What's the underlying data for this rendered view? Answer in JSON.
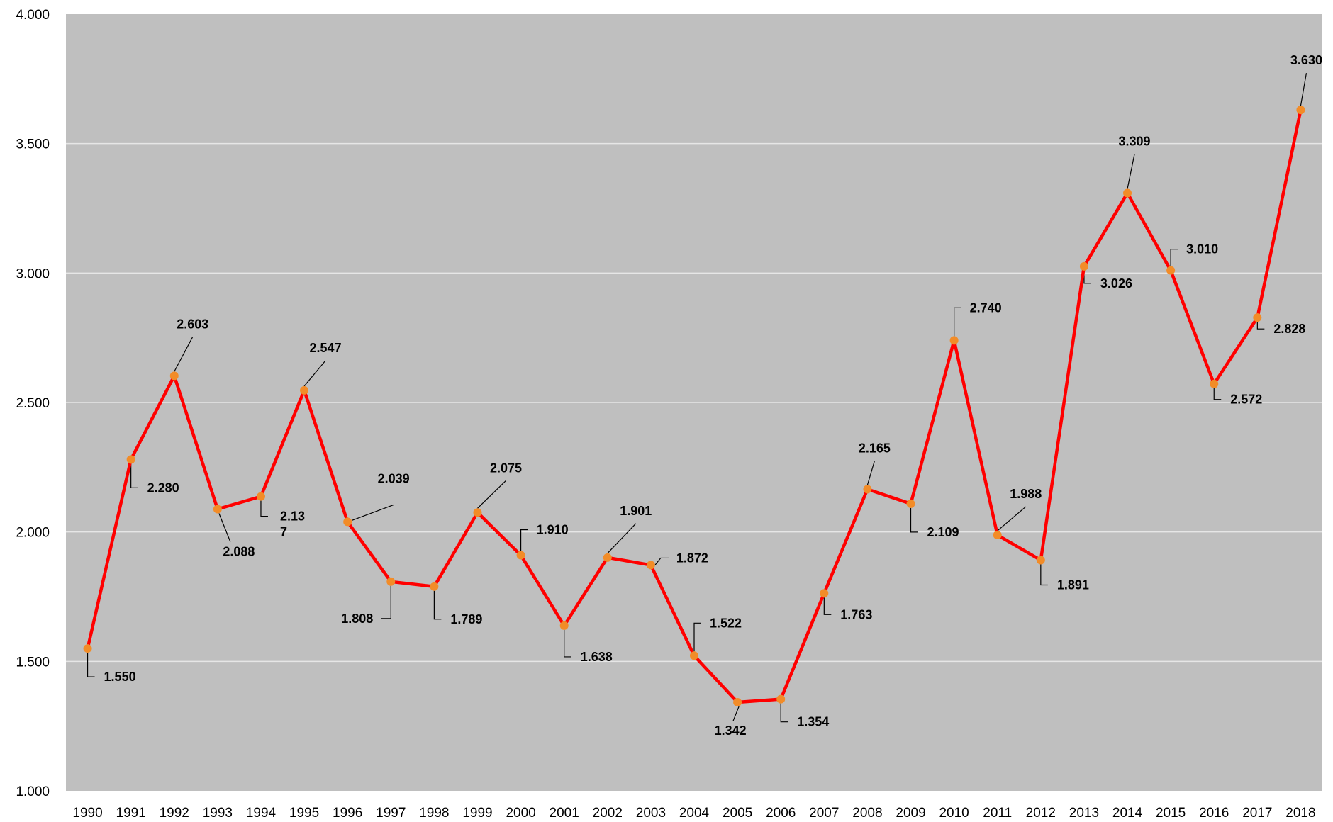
{
  "chart_data": {
    "type": "line",
    "categories": [
      "1990",
      "1991",
      "1992",
      "1993",
      "1994",
      "1995",
      "1996",
      "1997",
      "1998",
      "1999",
      "2000",
      "2001",
      "2002",
      "2003",
      "2004",
      "2005",
      "2006",
      "2007",
      "2008",
      "2009",
      "2010",
      "2011",
      "2012",
      "2013",
      "2014",
      "2015",
      "2016",
      "2017",
      "2018"
    ],
    "values": [
      1550,
      2280,
      2603,
      2088,
      2137,
      2547,
      2039,
      1808,
      1789,
      2075,
      1910,
      1638,
      1901,
      1872,
      1522,
      1342,
      1354,
      1763,
      2165,
      2109,
      2740,
      1988,
      1891,
      3026,
      3309,
      3010,
      2572,
      2828,
      3630
    ],
    "data_labels": [
      "1.550",
      "2.280",
      "2.603",
      "2.088",
      "2.13\n7",
      "2.547",
      "2.039",
      "1.808",
      "1.789",
      "2.075",
      "1.910",
      "1.638",
      "1.901",
      "1.872",
      "1.522",
      "1.342",
      "1.354",
      "1.763",
      "2.165",
      "2.109",
      "2.740",
      "1.988",
      "1.891",
      "3.026",
      "3.309",
      "3.010",
      "2.572",
      "2.828",
      "3.630"
    ],
    "y_ticks": [
      1000,
      1500,
      2000,
      2500,
      3000,
      3500,
      4000
    ],
    "y_tick_labels": [
      "1.000",
      "1.500",
      "2.000",
      "2.500",
      "3.000",
      "3.500",
      "4.000"
    ],
    "ylim": [
      1000,
      4000
    ],
    "title": "",
    "xlabel": "",
    "ylabel": "",
    "grid": true,
    "legend": "none",
    "colors": {
      "plot_background": "#bfbfbf",
      "gridline": "#e6e6e6",
      "line": "#ff0000",
      "marker": "#f28c28"
    }
  }
}
